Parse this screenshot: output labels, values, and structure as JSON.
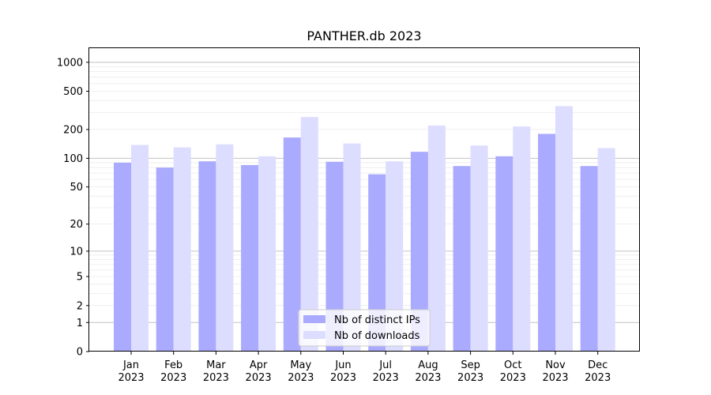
{
  "chart_data": {
    "type": "bar",
    "title": "PANTHER.db 2023",
    "categories": [
      [
        "Jan",
        "2023"
      ],
      [
        "Feb",
        "2023"
      ],
      [
        "Mar",
        "2023"
      ],
      [
        "Apr",
        "2023"
      ],
      [
        "May",
        "2023"
      ],
      [
        "Jun",
        "2023"
      ],
      [
        "Jul",
        "2023"
      ],
      [
        "Aug",
        "2023"
      ],
      [
        "Sep",
        "2023"
      ],
      [
        "Oct",
        "2023"
      ],
      [
        "Nov",
        "2023"
      ],
      [
        "Dec",
        "2023"
      ]
    ],
    "series": [
      {
        "name": "Nb of distinct IPs",
        "color": "#aaaaff",
        "values": [
          90,
          80,
          93,
          85,
          165,
          92,
          68,
          117,
          83,
          105,
          180,
          83
        ]
      },
      {
        "name": "Nb of downloads",
        "color": "#ddddff",
        "values": [
          138,
          130,
          140,
          105,
          270,
          143,
          93,
          220,
          136,
          215,
          350,
          128
        ]
      }
    ],
    "yscale": "log(1+y)",
    "ylim": [
      0,
      1400
    ],
    "yticks": [
      0,
      1,
      2,
      5,
      10,
      20,
      50,
      100,
      200,
      500,
      1000
    ],
    "ytick_labels": [
      "0",
      "1",
      "2",
      "5",
      "10",
      "20",
      "50",
      "100",
      "200",
      "500",
      "1000"
    ],
    "grid": "horizontal",
    "legend_position": "lower center"
  }
}
